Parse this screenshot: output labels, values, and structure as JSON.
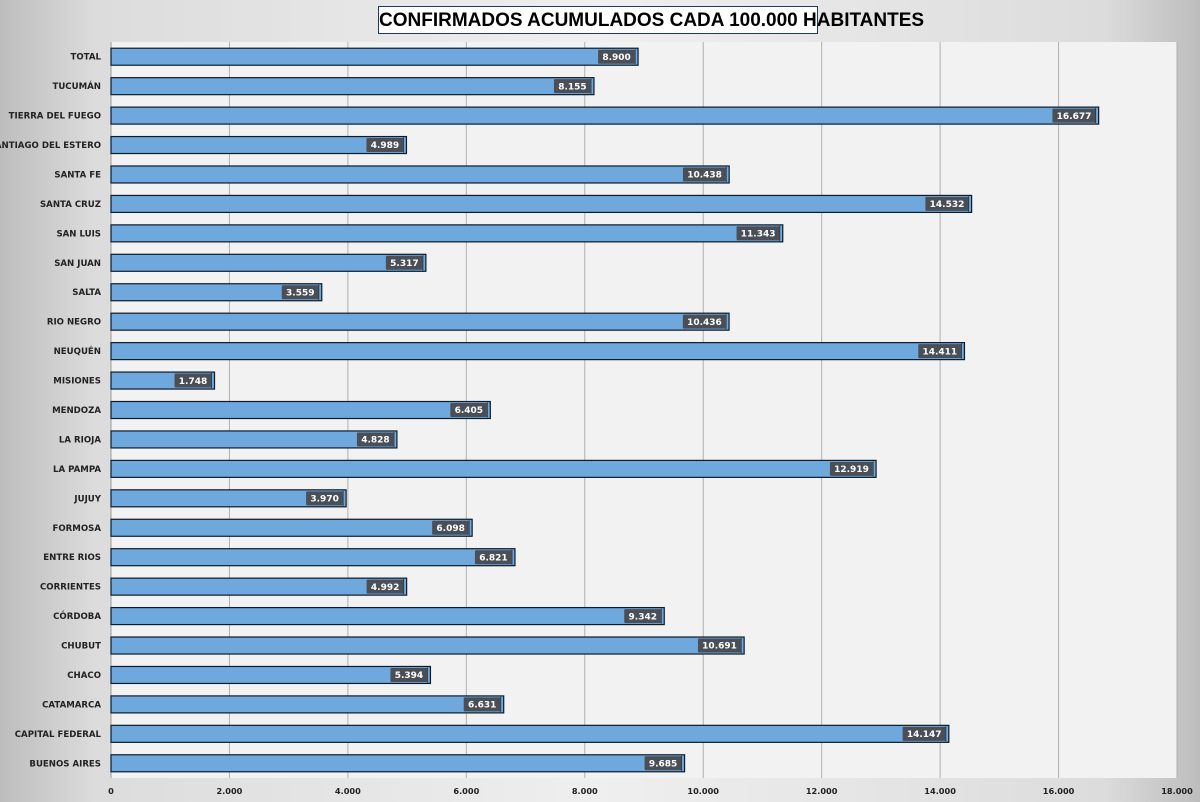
{
  "chart_data": {
    "type": "bar",
    "orientation": "horizontal",
    "title": "CONFIRMADOS ACUMULADOS CADA 100.000 HABITANTES",
    "categories": [
      "TOTAL",
      "TUCUMÁN",
      "TIERRA  DEL FUEGO",
      "SANTIAGO  DEL ESTERO",
      "SANTA FE",
      "SANTA CRUZ",
      "SAN LUIS",
      "SAN JUAN",
      "SALTA",
      "RIO  NEGRO",
      "NEUQUÉN",
      "MISIONES",
      "MENDOZA",
      "LA RIOJA",
      "LA PAMPA",
      "JUJUY",
      "FORMOSA",
      "ENTRE  RIOS",
      "CORRIENTES",
      "CÓRDOBA",
      "CHUBUT",
      "CHACO",
      "CATAMARCA",
      "CAPITAL  FEDERAL",
      "BUENOS  AIRES"
    ],
    "values": [
      8900,
      8155,
      16677,
      4989,
      10438,
      14532,
      11343,
      5317,
      3559,
      10436,
      14411,
      1748,
      6405,
      4828,
      12919,
      3970,
      6098,
      6821,
      4992,
      9342,
      10691,
      5394,
      6631,
      14147,
      9685
    ],
    "value_labels": [
      "8.900",
      "8.155",
      "16.677",
      "4.989",
      "10.438",
      "14.532",
      "11.343",
      "5.317",
      "3.559",
      "10.436",
      "14.411",
      "1.748",
      "6.405",
      "4.828",
      "12.919",
      "3.970",
      "6.098",
      "6.821",
      "4.992",
      "9.342",
      "10.691",
      "5.394",
      "6.631",
      "14.147",
      "9.685"
    ],
    "x_ticks": [
      0,
      2000,
      4000,
      6000,
      8000,
      10000,
      12000,
      14000,
      16000,
      18000
    ],
    "x_tick_labels": [
      "0",
      "2.000",
      "4.000",
      "6.000",
      "8.000",
      "10.000",
      "12.000",
      "14.000",
      "16.000",
      "18.000"
    ],
    "xlim": [
      0,
      18000
    ],
    "grid": "vertical",
    "legend": "none",
    "colors": {
      "bar_fill": "#6fa8dc",
      "bar_border": "#0d1b2a",
      "label_box": "#4a4f57",
      "label_text": "#ffffff",
      "plot_background": "#f2f2f2",
      "gridline": "#b0b0b0",
      "title_border": "#1f3864"
    }
  }
}
